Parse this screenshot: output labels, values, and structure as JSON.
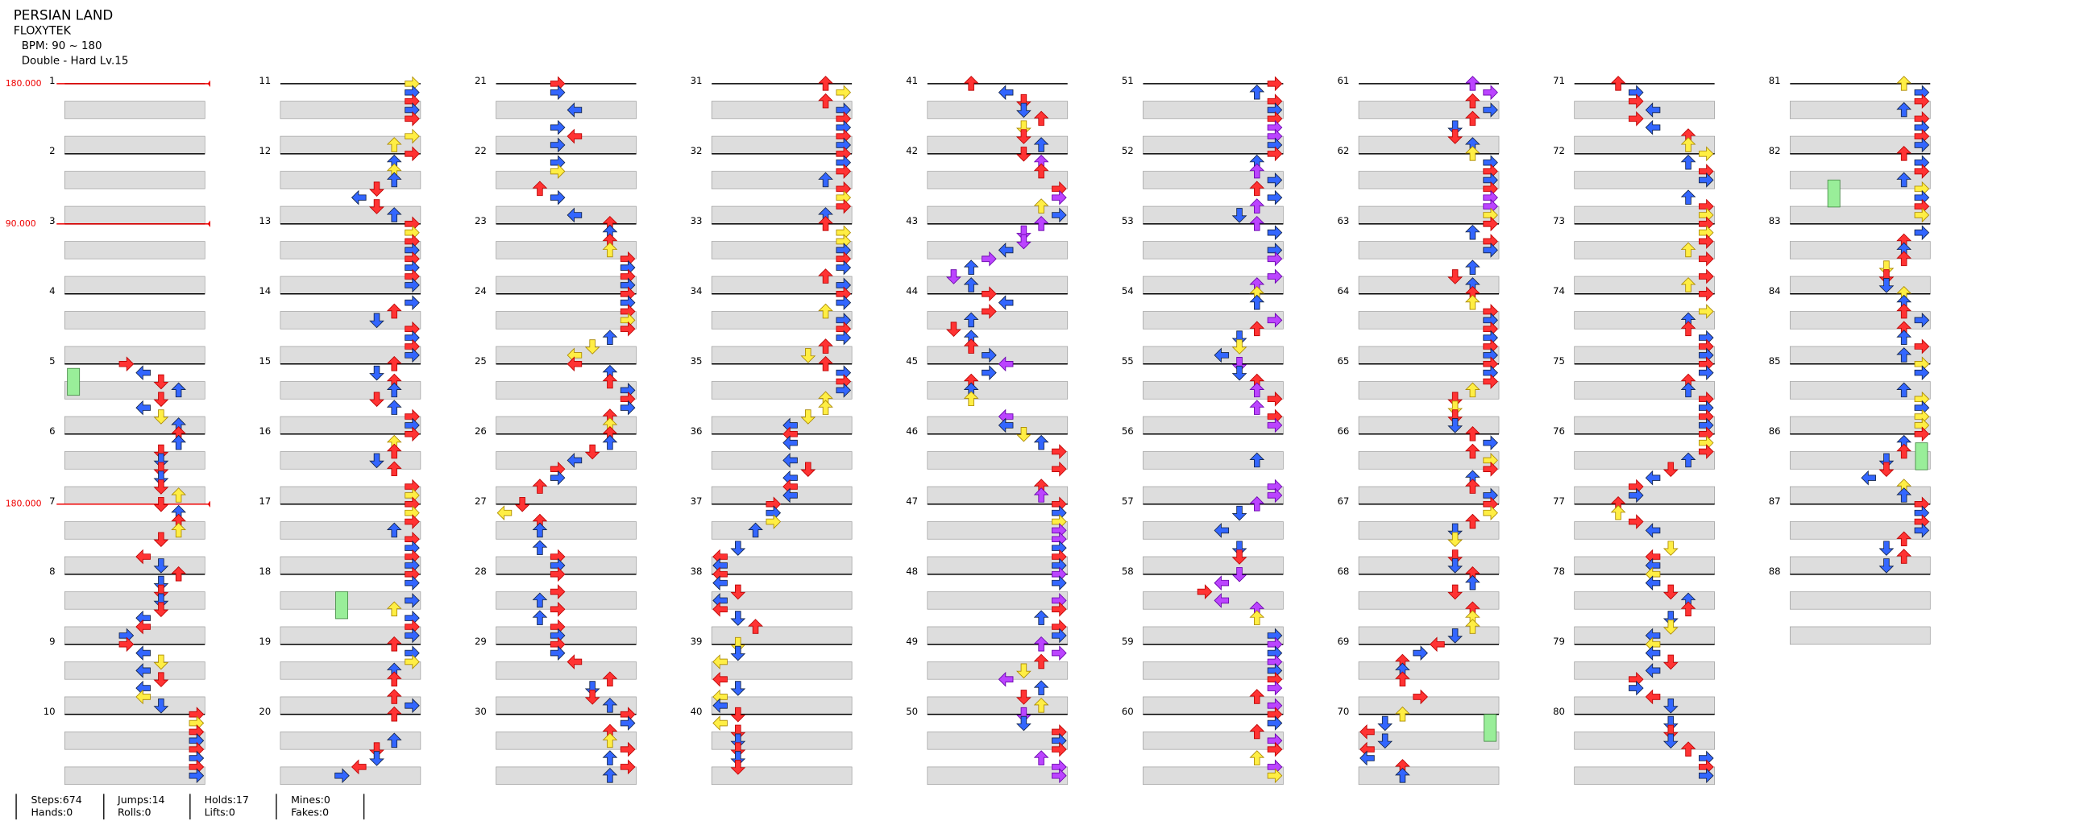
{
  "header": {
    "title": "PERSIAN LAND",
    "artist": "FLOXYTEK",
    "bpm": "BPM: 90 ~ 180",
    "difficulty": "Double - Hard Lv.15"
  },
  "bpm_changes": [
    "180.000",
    "90.000",
    "180.000"
  ],
  "measures": [
    1,
    2,
    3,
    4,
    5,
    6,
    7,
    8,
    9,
    10,
    11,
    12,
    13,
    14,
    15,
    16,
    17,
    18,
    19,
    20,
    21,
    22,
    23,
    24,
    25,
    26,
    27,
    28,
    29,
    30,
    31,
    32,
    33,
    34,
    35,
    36,
    37,
    38,
    39,
    40,
    41,
    42,
    43,
    44,
    45,
    46,
    47,
    48,
    49,
    50,
    51,
    52,
    53,
    54,
    55,
    56,
    57,
    58,
    59,
    60,
    61,
    62,
    63,
    64,
    65,
    66,
    67,
    68,
    69,
    70,
    71,
    72,
    73,
    74,
    75,
    76,
    77,
    78,
    79,
    80,
    81,
    82,
    83,
    84,
    85,
    86,
    87,
    88
  ],
  "stats": [
    [
      "Steps:674",
      "Hands:0"
    ],
    [
      "Jumps:14",
      "Rolls:0"
    ],
    [
      "Holds:17",
      "Lifts:0"
    ],
    [
      "Mines:0",
      "Fakes:0"
    ]
  ]
}
